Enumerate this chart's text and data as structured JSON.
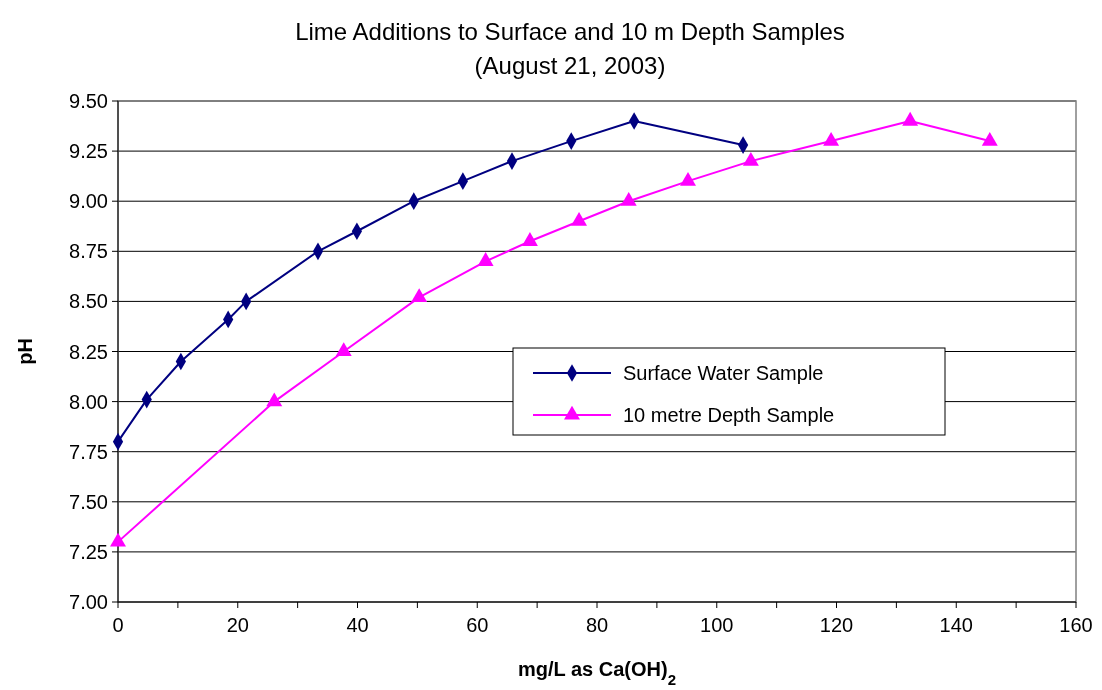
{
  "chart_data": {
    "type": "line",
    "title": "Lime Additions to Surface and 10 m Depth Samples",
    "subtitle": "(August 21, 2003)",
    "xlabel": "mg/L as Ca(OH)$_{2}$",
    "ylabel": "pH",
    "xlim": [
      0,
      160
    ],
    "xticks": [
      0,
      {
        "value": 10,
        "label": null
      },
      20,
      {
        "value": 30,
        "label": null
      },
      40,
      {
        "value": 50,
        "label": null
      },
      60,
      {
        "value": 70,
        "label": null
      },
      80,
      {
        "value": 90,
        "label": null
      },
      100,
      {
        "value": 110,
        "label": null
      },
      120,
      {
        "value": 130,
        "label": null
      },
      140,
      {
        "value": 150,
        "label": null
      },
      160
    ],
    "ylim": [
      7,
      9.5
    ],
    "yticks": [
      {
        "value": 7,
        "label": "7.00"
      },
      7.25,
      {
        "value": 7.5,
        "label": "7.50"
      },
      7.75,
      {
        "value": 8,
        "label": "8.00"
      },
      8.25,
      {
        "value": 8.5,
        "label": "8.50"
      },
      8.75,
      {
        "value": 9,
        "label": "9.00"
      },
      9.25,
      {
        "value": 9.5,
        "label": "9.50"
      }
    ],
    "grid": "y",
    "legend": "right",
    "line_style": "solid",
    "series": [
      {
        "name": "Surface Water Sample",
        "color": "#000080",
        "marker": "diamond",
        "x": [
          0,
          4.8,
          10.5,
          18.4,
          21.4,
          33.4,
          39.9,
          49.4,
          57.6,
          65.8,
          75.7,
          86.2,
          104.4
        ],
        "values": [
          7.8,
          8.01,
          8.2,
          8.41,
          8.5,
          8.75,
          8.85,
          9.0,
          9.1,
          9.2,
          9.3,
          9.4,
          9.28
        ]
      },
      {
        "name": "10 metre Depth Sample",
        "color": "#ff00ff",
        "marker": "triangle",
        "x": [
          0,
          26.1,
          37.7,
          50.3,
          61.4,
          68.8,
          77.0,
          85.3,
          95.2,
          105.7,
          119.1,
          132.3,
          145.6
        ],
        "values": [
          7.3,
          8.0,
          8.25,
          8.52,
          8.7,
          8.8,
          8.9,
          9.0,
          9.1,
          9.2,
          9.3,
          9.4,
          9.3
        ]
      }
    ]
  }
}
